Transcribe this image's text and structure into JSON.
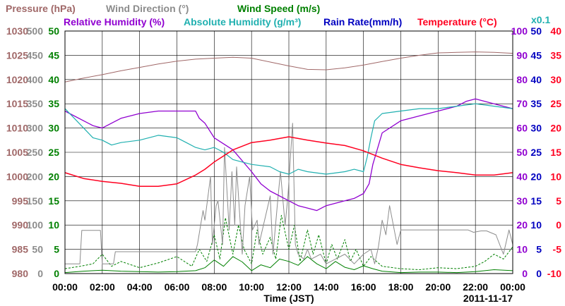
{
  "chart_data": {
    "type": "line",
    "date": "2011-11-17",
    "xlabel": "Time (JST)",
    "x_ticks": [
      "00:00",
      "02:00",
      "04:00",
      "06:00",
      "08:00",
      "10:00",
      "12:00",
      "14:00",
      "16:00",
      "18:00",
      "20:00",
      "22:00",
      "00:00"
    ],
    "x_range_hours": [
      0,
      24
    ],
    "grid": true,
    "legend": {
      "row1": [
        {
          "label": "Pressure (hPa)",
          "color": "#a06868"
        },
        {
          "label": "Wind Direction (°)",
          "color": "#8c8c8c"
        },
        {
          "label": "Wind Speed (m/s)",
          "color": "#008000"
        }
      ],
      "row2": [
        {
          "label": "Relative Humidity (%)",
          "color": "#9000d0"
        },
        {
          "label": "Absolute Humidity (g/m³)",
          "color": "#20b0b0"
        },
        {
          "label": "Rain Rate(mm/h)",
          "color": "#0000c0"
        },
        {
          "label": "Temperature (°C)",
          "color": "#ff0020"
        }
      ],
      "x01_note": "x0.1"
    },
    "axes": {
      "pressure": {
        "color": "#a06868",
        "min": 980,
        "max": 1030,
        "ticks": [
          "1030",
          "1025",
          "1020",
          "1015",
          "1010",
          "1005",
          "1000",
          "995",
          "990",
          "985",
          "980"
        ]
      },
      "wind_direction": {
        "color": "#8c8c8c",
        "min": 0,
        "max": 500,
        "ticks": [
          "500",
          "450",
          "400",
          "350",
          "300",
          "250",
          "200",
          "150",
          "100",
          "50",
          "0"
        ]
      },
      "wind_speed": {
        "color": "#008000",
        "min": 0,
        "max": 50,
        "ticks": [
          "50",
          "45",
          "40",
          "35",
          "30",
          "25",
          "20",
          "15",
          "10",
          "5",
          "0"
        ]
      },
      "relative_humidity": {
        "color": "#9000d0",
        "min": 0,
        "max": 100,
        "ticks": [
          "100",
          "90",
          "80",
          "70",
          "60",
          "50",
          "40",
          "30",
          "20",
          "10",
          "0"
        ]
      },
      "rain_rate": {
        "color": "#0000c0",
        "min": 0,
        "max": 50,
        "ticks": [
          "50",
          "45",
          "40",
          "35",
          "30",
          "25",
          "20",
          "15",
          "10",
          "5",
          "0"
        ]
      },
      "temperature": {
        "color": "#ff0020",
        "min": -10,
        "max": 40,
        "ticks": [
          "40",
          "35",
          "30",
          "25",
          "20",
          "15",
          "10",
          "5",
          "0",
          "-5",
          "-10"
        ]
      }
    },
    "series": [
      {
        "name": "Pressure (hPa)",
        "axis": "pressure",
        "color": "#a06868",
        "width": 1,
        "x": [
          0,
          1,
          2,
          3,
          4,
          5,
          6,
          7,
          8,
          9,
          10,
          11,
          12,
          13,
          14,
          15,
          16,
          17,
          18,
          19,
          20,
          21,
          22,
          23,
          24
        ],
        "y": [
          1019.5,
          1020.3,
          1021,
          1021.8,
          1022.5,
          1023.2,
          1023.8,
          1024.2,
          1024.4,
          1024.6,
          1024.4,
          1023.6,
          1022.8,
          1022.1,
          1022,
          1022.4,
          1023,
          1023.7,
          1024.4,
          1025,
          1025.5,
          1025.6,
          1025.7,
          1025.6,
          1025.4
        ]
      },
      {
        "name": "Relative Humidity (%)",
        "axis": "relative_humidity",
        "color": "#9000d0",
        "width": 1.3,
        "x": [
          0,
          0.25,
          1,
          1.5,
          2,
          2.5,
          3,
          4,
          5,
          6,
          7,
          7.2,
          7.5,
          8,
          9,
          10,
          10.5,
          11,
          12,
          12.5,
          13,
          13.5,
          14,
          15,
          15.5,
          16,
          16.3,
          16.5,
          17,
          18,
          19,
          20,
          21,
          21.5,
          22,
          22.5,
          23,
          24
        ],
        "y": [
          67,
          66,
          63,
          61,
          60,
          62,
          64,
          66,
          67,
          67,
          67,
          64,
          62,
          56,
          51,
          42,
          37,
          34,
          30,
          28,
          27,
          26,
          28,
          30,
          31,
          33,
          37,
          45,
          58,
          63,
          65,
          67,
          69,
          71,
          72,
          71,
          70,
          68
        ]
      },
      {
        "name": "Absolute Humidity (g/m³)",
        "axis": "relative_humidity",
        "color": "#20b0b0",
        "width": 1.2,
        "x": [
          0,
          0.5,
          1,
          1.5,
          2,
          2.5,
          3,
          4,
          5,
          6,
          6.5,
          7,
          7.5,
          8,
          8.5,
          9,
          9.5,
          10,
          11,
          11.5,
          12,
          12.5,
          13,
          14,
          15,
          15.5,
          16,
          16.2,
          16.4,
          16.6,
          17,
          18,
          19,
          20,
          21,
          22,
          23,
          24
        ],
        "y": [
          68,
          64,
          60,
          56,
          55,
          53,
          54,
          55,
          57,
          56,
          54,
          52,
          51,
          52,
          50,
          47,
          46,
          45,
          44,
          42,
          41,
          43,
          42,
          41,
          42,
          43,
          42,
          48,
          56,
          63,
          66,
          67,
          68,
          68,
          69,
          70,
          69,
          68
        ]
      },
      {
        "name": "Temperature (°C)",
        "axis": "temperature",
        "color": "#ff0020",
        "width": 1.5,
        "x": [
          0,
          1,
          2,
          3,
          4,
          5,
          6,
          7,
          7.5,
          8,
          9,
          10,
          11,
          12,
          13,
          14,
          15,
          16,
          17,
          18,
          19,
          20,
          21,
          22,
          23,
          24
        ],
        "y": [
          10.8,
          9.6,
          9,
          8.6,
          8,
          8,
          8.5,
          10.3,
          11.5,
          13,
          15.5,
          17,
          17.5,
          18.2,
          17.5,
          16.9,
          16.4,
          15.3,
          13.8,
          12.5,
          11.8,
          11.2,
          10.8,
          10.3,
          10.3,
          10.8
        ]
      },
      {
        "name": "Wind Direction (°)",
        "axis": "wind_direction",
        "color": "#8c8c8c",
        "width": 1,
        "x": [
          0,
          0.8,
          0.9,
          1.9,
          2.0,
          2.6,
          2.7,
          7.0,
          7.1,
          7.4,
          7.5,
          7.8,
          7.9,
          8.1,
          8.2,
          8.45,
          8.55,
          8.8,
          8.95,
          9.1,
          9.2,
          9.5,
          9.65,
          9.9,
          10.05,
          10.3,
          10.4,
          11.0,
          11.15,
          11.4,
          11.55,
          11.8,
          11.95,
          12.2,
          12.35,
          12.5,
          12.8,
          13.0,
          13.2,
          13.7,
          14.0,
          14.5,
          15.0,
          15.5,
          16.0,
          16.4,
          16.6,
          16.8,
          17.0,
          17.2,
          17.4,
          17.8,
          18.0,
          20.0,
          21.0,
          21.6,
          21.9,
          22.3,
          22.6,
          23.1,
          23.5,
          23.8,
          24
        ],
        "y": [
          20,
          20,
          89,
          89,
          20,
          20,
          45,
          45,
          60,
          130,
          110,
          200,
          60,
          140,
          150,
          60,
          260,
          90,
          210,
          100,
          220,
          40,
          140,
          200,
          90,
          110,
          60,
          160,
          40,
          150,
          210,
          100,
          160,
          310,
          60,
          40,
          30,
          50,
          30,
          40,
          20,
          30,
          40,
          20,
          40,
          50,
          20,
          55,
          110,
          80,
          140,
          60,
          90,
          90,
          90,
          90,
          85,
          88,
          88,
          80,
          40,
          90,
          60
        ]
      },
      {
        "name": "Wind Speed (m/s) avg",
        "axis": "wind_speed",
        "color": "#008000",
        "width": 1,
        "x": [
          0,
          1,
          2,
          3,
          4,
          5,
          6,
          7,
          7.5,
          8,
          8.5,
          9,
          9.5,
          10,
          10.5,
          11,
          11.5,
          12,
          12.5,
          13,
          13.5,
          14,
          14.5,
          15,
          15.5,
          16,
          16.5,
          17,
          18,
          19,
          20,
          21,
          22,
          23,
          24
        ],
        "y": [
          0.2,
          0.5,
          0.7,
          0.5,
          0.4,
          0.3,
          0.4,
          0.6,
          1.2,
          2.8,
          1.5,
          3.5,
          2.4,
          0.6,
          1.8,
          1.2,
          3,
          2.5,
          1.7,
          3.5,
          2,
          1,
          2.5,
          1.3,
          0.8,
          1.6,
          1,
          0.5,
          0.2,
          0.3,
          0.3,
          0.2,
          0.4,
          0.8,
          0.6
        ]
      },
      {
        "name": "Wind Speed (m/s) gust",
        "axis": "wind_speed",
        "color": "#008000",
        "width": 1,
        "dashed": true,
        "x": [
          0,
          0.8,
          1.5,
          2,
          2.5,
          3,
          4,
          5,
          6,
          6.8,
          7.2,
          7.6,
          8,
          8.3,
          8.6,
          9,
          9.3,
          9.6,
          10,
          10.3,
          10.6,
          11,
          11.3,
          11.6,
          12,
          12.3,
          12.6,
          13,
          13.3,
          13.6,
          14,
          14.3,
          14.6,
          15,
          15.3,
          15.6,
          16,
          16.4,
          17,
          18,
          19,
          20,
          21,
          22,
          22.5,
          23,
          23.5,
          24
        ],
        "y": [
          1,
          1.5,
          2,
          4,
          1.5,
          2.5,
          1.2,
          2.2,
          3.5,
          1.5,
          5,
          2.5,
          8,
          3,
          11.5,
          4,
          10,
          5,
          2,
          9,
          4,
          7.5,
          3,
          12,
          5,
          10,
          2.5,
          9,
          4,
          8,
          2,
          6,
          3,
          7,
          2.5,
          5,
          1.5,
          3.5,
          1.5,
          1,
          0.8,
          1.2,
          1,
          1.5,
          2.5,
          4,
          3,
          5.5
        ]
      }
    ]
  }
}
